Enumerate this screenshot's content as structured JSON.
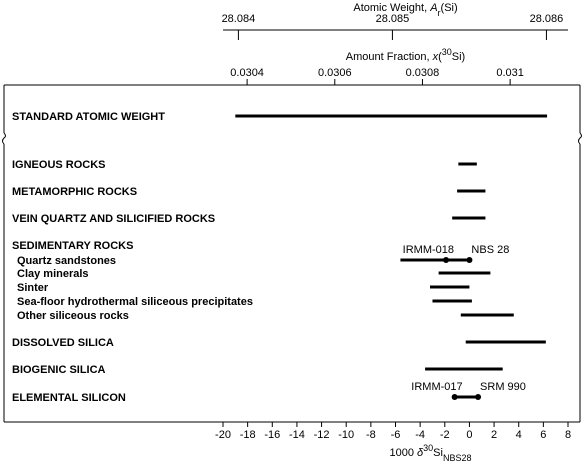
{
  "chart_data": {
    "type": "range",
    "top_axes": [
      {
        "label_parts": [
          {
            "text": "Atomic Weight, "
          },
          {
            "text": "A",
            "style": "italic"
          },
          {
            "text": "r",
            "shift": "sub"
          },
          {
            "text": "(Si)"
          }
        ],
        "lim": [
          28.0839,
          28.08614
        ],
        "ticks": [
          28.084,
          28.085,
          28.086
        ]
      },
      {
        "label_parts": [
          {
            "text": "Amount Fraction, "
          },
          {
            "text": "x",
            "style": "italic"
          },
          {
            "text": "("
          },
          {
            "text": "30",
            "shift": "super"
          },
          {
            "text": "Si)"
          }
        ],
        "lim": [
          0.030345,
          0.031132
        ],
        "ticks": [
          0.0304,
          0.0306,
          0.0308,
          0.031
        ]
      }
    ],
    "xlabel_parts": [
      {
        "text": "1000 "
      },
      {
        "text": "δ",
        "style": "italic"
      },
      {
        "text": "30",
        "shift": "super"
      },
      {
        "text": "Si"
      },
      {
        "text": "NBS28",
        "shift": "sub"
      }
    ],
    "xlim": [
      -20,
      8
    ],
    "xticks": [
      -20,
      -18,
      -16,
      -14,
      -12,
      -10,
      -8,
      -6,
      -4,
      -2,
      0,
      2,
      4,
      6,
      8
    ],
    "categories": [
      "STANDARD ATOMIC WEIGHT",
      "IGNEOUS ROCKS",
      "METAMORPHIC ROCKS",
      "VEIN QUARTZ AND SILICIFIED ROCKS",
      "SEDIMENTARY ROCKS",
      "Quartz sandstones",
      "Clay minerals",
      "Sinter",
      "Sea-floor hydrothermal siliceous precipitates",
      "Other siliceous rocks",
      "DISSOLVED SILICA",
      "BIOGENIC SILICA",
      "ELEMENTAL SILICON"
    ],
    "indented": [
      false,
      false,
      false,
      false,
      false,
      true,
      true,
      true,
      true,
      true,
      false,
      false,
      false
    ],
    "low": [
      -19.0,
      -0.9,
      -1.0,
      -1.4,
      null,
      -5.6,
      -2.5,
      -3.2,
      -3.0,
      -0.7,
      -0.3,
      -3.6,
      -1.2
    ],
    "high": [
      6.3,
      0.6,
      1.3,
      1.3,
      null,
      0.2,
      1.7,
      0.0,
      0.2,
      3.6,
      6.2,
      2.7,
      0.7
    ],
    "references": [
      {
        "category": 5,
        "name": "IRMM-018",
        "value": -1.9
      },
      {
        "category": 5,
        "name": "NBS 28",
        "value": 0
      },
      {
        "category": 12,
        "name": "IRMM-017",
        "value": -1.2
      },
      {
        "category": 12,
        "name": "SRM 990",
        "value": 0.7
      }
    ],
    "color": "#000000"
  }
}
